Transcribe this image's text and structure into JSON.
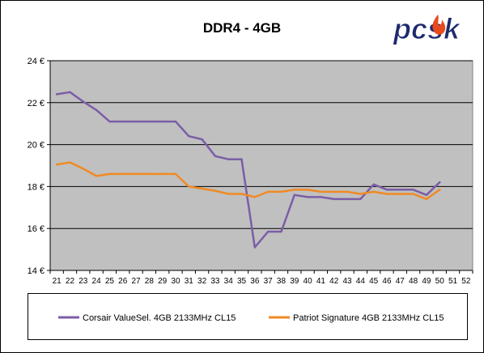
{
  "brand": {
    "logo_text": "pcsk",
    "logo_colors": [
      "#1e2a6e",
      "#f7b500",
      "#e8491d"
    ]
  },
  "colors": {
    "plot_background": "#c0c0c0",
    "gridline": "#000000",
    "series": [
      "#7b5ea7",
      "#f08a24"
    ]
  },
  "chart_data": {
    "type": "line",
    "title": "DDR4 - 4GB",
    "xlabel": "",
    "ylabel": "",
    "ylim": [
      14,
      24
    ],
    "y_ticks": [
      14,
      16,
      18,
      20,
      22,
      24
    ],
    "y_tick_labels": [
      "14 €",
      "16 €",
      "18 €",
      "20 €",
      "22 €",
      "24 €"
    ],
    "x_ticks": [
      "21",
      "22",
      "23",
      "24",
      "25",
      "26",
      "27",
      "28",
      "29",
      "30",
      "31",
      "32",
      "33",
      "34",
      "35",
      "36",
      "37",
      "38",
      "39",
      "40",
      "41",
      "42",
      "43",
      "44",
      "45",
      "46",
      "47",
      "48",
      "49",
      "50",
      "51",
      "52"
    ],
    "grid": "horizontal",
    "legend_position": "bottom",
    "series": [
      {
        "name": "Corsair ValueSel. 4GB 2133MHz CL15",
        "x": [
          21,
          22,
          23,
          24,
          25,
          26,
          27,
          28,
          29,
          30,
          31,
          32,
          33,
          34,
          35,
          36,
          37,
          38,
          39,
          40,
          41,
          42,
          43,
          44,
          45,
          46,
          47,
          48,
          49,
          50
        ],
        "values": [
          22.4,
          22.5,
          22.05,
          21.65,
          21.1,
          21.1,
          21.1,
          21.1,
          21.1,
          21.1,
          20.4,
          20.25,
          19.45,
          19.3,
          19.3,
          15.1,
          15.85,
          15.85,
          17.6,
          17.5,
          17.5,
          17.4,
          17.4,
          17.4,
          18.1,
          17.85,
          17.85,
          17.85,
          17.6,
          18.2
        ]
      },
      {
        "name": "Patriot Signature 4GB 2133MHz CL15",
        "x": [
          21,
          22,
          23,
          24,
          25,
          26,
          27,
          28,
          29,
          30,
          31,
          32,
          33,
          34,
          35,
          36,
          37,
          38,
          39,
          40,
          41,
          42,
          43,
          44,
          45,
          46,
          47,
          48,
          49,
          50
        ],
        "values": [
          19.05,
          19.15,
          18.85,
          18.5,
          18.6,
          18.6,
          18.6,
          18.6,
          18.6,
          18.6,
          18.0,
          17.9,
          17.8,
          17.65,
          17.65,
          17.5,
          17.75,
          17.75,
          17.85,
          17.85,
          17.75,
          17.75,
          17.75,
          17.65,
          17.75,
          17.65,
          17.65,
          17.65,
          17.4,
          17.85
        ]
      }
    ]
  }
}
